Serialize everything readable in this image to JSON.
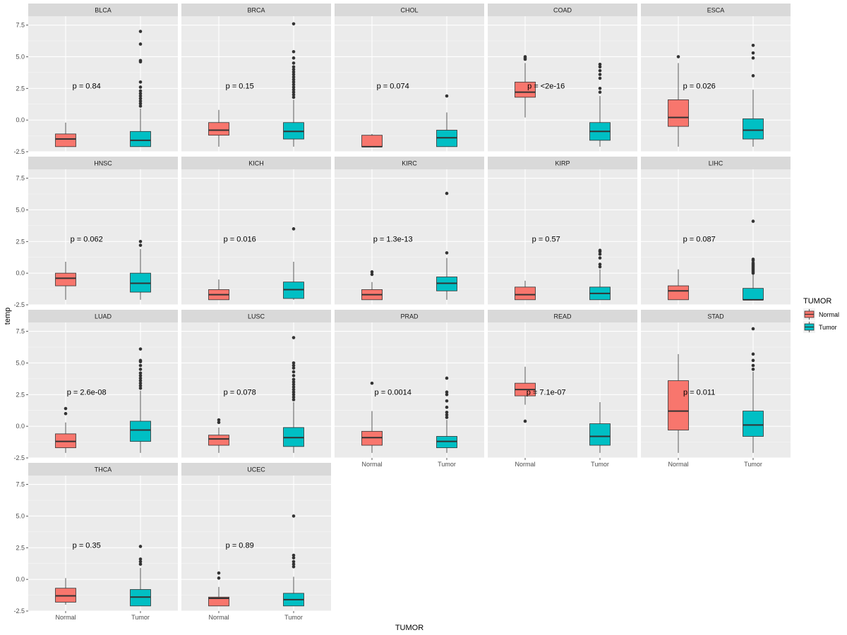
{
  "chart_data": {
    "type": "boxplot",
    "ylabel": "temp",
    "xlabel": "TUMOR",
    "categories": [
      "Normal",
      "Tumor"
    ],
    "yticks": [
      -2.5,
      0.0,
      2.5,
      5.0,
      7.5
    ],
    "ytick_labels": [
      "-2.5",
      "0.0",
      "2.5",
      "5.0",
      "7.5"
    ],
    "ylim": [
      -2.5,
      8.2
    ],
    "legend": {
      "title": "TUMOR",
      "position": "right",
      "entries": [
        {
          "label": "Normal",
          "color": "#F8766D"
        },
        {
          "label": "Tumor",
          "color": "#00BFC4"
        }
      ]
    },
    "colors": {
      "Normal": "#F8766D",
      "Tumor": "#00BFC4"
    },
    "panels": [
      {
        "name": "BLCA",
        "p_label": "p = 0.84",
        "Normal": {
          "whisker_low": -2.1,
          "q1": -2.1,
          "median": -1.5,
          "q3": -1.1,
          "whisker_high": -0.2,
          "outliers": []
        },
        "Tumor": {
          "whisker_low": -2.1,
          "q1": -2.1,
          "median": -1.6,
          "q3": -0.9,
          "whisker_high": 0.9,
          "outliers": [
            1.1,
            1.3,
            1.5,
            1.7,
            1.9,
            2.1,
            2.3,
            2.6,
            3.0,
            4.6,
            4.7,
            6.0,
            7.0
          ]
        }
      },
      {
        "name": "BRCA",
        "p_label": "p = 0.15",
        "Normal": {
          "whisker_low": -2.1,
          "q1": -1.2,
          "median": -0.8,
          "q3": -0.2,
          "whisker_high": 0.8,
          "outliers": []
        },
        "Tumor": {
          "whisker_low": -2.1,
          "q1": -1.5,
          "median": -0.9,
          "q3": -0.2,
          "whisker_high": 1.6,
          "outliers": [
            1.8,
            2.0,
            2.2,
            2.4,
            2.6,
            2.8,
            3.0,
            3.2,
            3.4,
            3.6,
            3.8,
            4.0,
            4.2,
            4.5,
            4.9,
            5.4,
            7.6
          ]
        }
      },
      {
        "name": "CHOL",
        "p_label": "p = 0.074",
        "Normal": {
          "whisker_low": -2.1,
          "q1": -2.1,
          "median": -2.1,
          "q3": -1.2,
          "whisker_high": -1.1,
          "outliers": []
        },
        "Tumor": {
          "whisker_low": -2.1,
          "q1": -2.1,
          "median": -1.4,
          "q3": -0.8,
          "whisker_high": 0.6,
          "outliers": [
            1.9
          ]
        }
      },
      {
        "name": "COAD",
        "p_label": "p = <2e-16",
        "Normal": {
          "whisker_low": 0.2,
          "q1": 1.8,
          "median": 2.2,
          "q3": 3.0,
          "whisker_high": 4.5,
          "outliers": [
            4.8,
            4.9,
            5.0
          ]
        },
        "Tumor": {
          "whisker_low": -2.1,
          "q1": -1.6,
          "median": -0.9,
          "q3": -0.2,
          "whisker_high": 1.9,
          "outliers": [
            2.2,
            2.5,
            3.3,
            3.6,
            3.9,
            4.2,
            4.4
          ]
        }
      },
      {
        "name": "ESCA",
        "p_label": "p = 0.026",
        "Normal": {
          "whisker_low": -2.1,
          "q1": -0.5,
          "median": 0.2,
          "q3": 1.6,
          "whisker_high": 4.5,
          "outliers": [
            5.0
          ]
        },
        "Tumor": {
          "whisker_low": -2.1,
          "q1": -1.5,
          "median": -0.8,
          "q3": 0.1,
          "whisker_high": 2.4,
          "outliers": [
            3.5,
            4.9,
            5.3,
            5.9
          ]
        }
      },
      {
        "name": "HNSC",
        "p_label": "p = 0.062",
        "Normal": {
          "whisker_low": -2.1,
          "q1": -1.0,
          "median": -0.4,
          "q3": 0.0,
          "whisker_high": 0.9,
          "outliers": []
        },
        "Tumor": {
          "whisker_low": -2.1,
          "q1": -1.5,
          "median": -0.8,
          "q3": 0.0,
          "whisker_high": 1.9,
          "outliers": [
            2.2,
            2.5
          ]
        }
      },
      {
        "name": "KICH",
        "p_label": "p = 0.016",
        "Normal": {
          "whisker_low": -2.1,
          "q1": -2.1,
          "median": -1.7,
          "q3": -1.3,
          "whisker_high": -0.5,
          "outliers": []
        },
        "Tumor": {
          "whisker_low": -2.1,
          "q1": -2.0,
          "median": -1.3,
          "q3": -0.7,
          "whisker_high": 0.9,
          "outliers": [
            3.5
          ]
        }
      },
      {
        "name": "KIRC",
        "p_label": "p = 1.3e-13",
        "Normal": {
          "whisker_low": -2.1,
          "q1": -2.1,
          "median": -1.7,
          "q3": -1.3,
          "whisker_high": -0.7,
          "outliers": [
            -0.1,
            0.1
          ]
        },
        "Tumor": {
          "whisker_low": -2.1,
          "q1": -1.4,
          "median": -0.8,
          "q3": -0.3,
          "whisker_high": 1.2,
          "outliers": [
            1.6,
            6.3
          ]
        }
      },
      {
        "name": "KIRP",
        "p_label": "p = 0.57",
        "Normal": {
          "whisker_low": -2.1,
          "q1": -2.1,
          "median": -1.7,
          "q3": -1.1,
          "whisker_high": -0.6,
          "outliers": []
        },
        "Tumor": {
          "whisker_low": -2.1,
          "q1": -2.1,
          "median": -1.6,
          "q3": -1.1,
          "whisker_high": 0.3,
          "outliers": [
            0.5,
            0.7,
            1.2,
            1.5,
            1.7,
            1.8
          ]
        }
      },
      {
        "name": "LIHC",
        "p_label": "p = 0.087",
        "Normal": {
          "whisker_low": -2.1,
          "q1": -2.1,
          "median": -1.4,
          "q3": -1.0,
          "whisker_high": 0.3,
          "outliers": []
        },
        "Tumor": {
          "whisker_low": -2.1,
          "q1": -2.1,
          "median": -2.1,
          "q3": -1.2,
          "whisker_high": -0.1,
          "outliers": [
            0.0,
            0.1,
            0.2,
            0.3,
            0.4,
            0.5,
            0.6,
            0.7,
            0.8,
            1.0,
            1.1,
            4.1
          ]
        }
      },
      {
        "name": "LUAD",
        "p_label": "p = 2.6e-08",
        "Normal": {
          "whisker_low": -2.1,
          "q1": -1.7,
          "median": -1.2,
          "q3": -0.6,
          "whisker_high": 0.3,
          "outliers": [
            1.0,
            1.4
          ]
        },
        "Tumor": {
          "whisker_low": -2.1,
          "q1": -1.2,
          "median": -0.3,
          "q3": 0.4,
          "whisker_high": 2.8,
          "outliers": [
            3.0,
            3.2,
            3.4,
            3.6,
            3.8,
            4.0,
            4.2,
            4.5,
            4.8,
            5.1,
            5.2,
            6.1
          ]
        }
      },
      {
        "name": "LUSC",
        "p_label": "p = 0.078",
        "Normal": {
          "whisker_low": -2.1,
          "q1": -1.5,
          "median": -1.0,
          "q3": -0.7,
          "whisker_high": -0.1,
          "outliers": [
            0.3,
            0.5
          ]
        },
        "Tumor": {
          "whisker_low": -2.1,
          "q1": -1.6,
          "median": -0.9,
          "q3": -0.1,
          "whisker_high": 1.9,
          "outliers": [
            2.1,
            2.3,
            2.5,
            2.7,
            2.9,
            3.1,
            3.3,
            3.5,
            3.7,
            4.0,
            4.3,
            4.6,
            4.8,
            5.0,
            7.0
          ]
        }
      },
      {
        "name": "PRAD",
        "p_label": "p = 0.0014",
        "Normal": {
          "whisker_low": -2.1,
          "q1": -1.5,
          "median": -0.9,
          "q3": -0.4,
          "whisker_high": 1.2,
          "outliers": [
            3.4
          ]
        },
        "Tumor": {
          "whisker_low": -2.1,
          "q1": -1.7,
          "median": -1.2,
          "q3": -0.8,
          "whisker_high": 0.5,
          "outliers": [
            0.7,
            0.9,
            1.1,
            1.5,
            2.0,
            2.5,
            2.7,
            3.8
          ]
        }
      },
      {
        "name": "READ",
        "p_label": "p = 7.1e-07",
        "Normal": {
          "whisker_low": 1.7,
          "q1": 2.4,
          "median": 2.9,
          "q3": 3.4,
          "whisker_high": 4.7,
          "outliers": [
            0.4
          ]
        },
        "Tumor": {
          "whisker_low": -2.1,
          "q1": -1.5,
          "median": -0.8,
          "q3": 0.2,
          "whisker_high": 1.9,
          "outliers": []
        }
      },
      {
        "name": "STAD",
        "p_label": "p = 0.011",
        "Normal": {
          "whisker_low": -2.1,
          "q1": -0.3,
          "median": 1.2,
          "q3": 3.6,
          "whisker_high": 5.7,
          "outliers": []
        },
        "Tumor": {
          "whisker_low": -2.1,
          "q1": -0.8,
          "median": 0.1,
          "q3": 1.2,
          "whisker_high": 4.3,
          "outliers": [
            4.5,
            4.8,
            5.2,
            5.7,
            7.7
          ]
        }
      },
      {
        "name": "THCA",
        "p_label": "p = 0.35",
        "Normal": {
          "whisker_low": -2.0,
          "q1": -1.8,
          "median": -1.3,
          "q3": -0.7,
          "whisker_high": 0.1,
          "outliers": []
        },
        "Tumor": {
          "whisker_low": -2.1,
          "q1": -2.1,
          "median": -1.4,
          "q3": -0.8,
          "whisker_high": 0.9,
          "outliers": [
            1.2,
            1.4,
            1.6,
            2.6
          ]
        }
      },
      {
        "name": "UCEC",
        "p_label": "p = 0.89",
        "Normal": {
          "whisker_low": -2.1,
          "q1": -2.1,
          "median": -1.5,
          "q3": -1.4,
          "whisker_high": -0.6,
          "outliers": [
            0.1,
            0.5
          ]
        },
        "Tumor": {
          "whisker_low": -2.1,
          "q1": -2.1,
          "median": -1.6,
          "q3": -1.1,
          "whisker_high": 0.2,
          "outliers": [
            1.0,
            1.2,
            1.4,
            1.7,
            1.9,
            5.0
          ]
        }
      }
    ]
  }
}
